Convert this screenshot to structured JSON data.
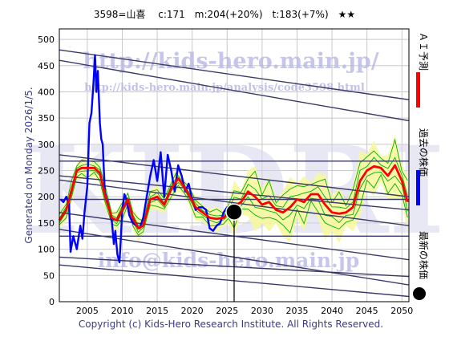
{
  "title": "3598=山喜　 c:171　m:204(+20%)　t:183(+7%)　★★",
  "side_label": "Generated on Monday 2026/1/5.",
  "copyright": "Copyright (c) Kids-Hero Research Institute. All Rights Reserved.",
  "watermarks": {
    "url_main": "http://kids-hero.main.jp/",
    "url_analysis": "http://kids-hero.main.jp/analysis/code3598.html",
    "email": "info@kids-hero.main.jp",
    "big": "KIDRI"
  },
  "legend": {
    "ai": "ＡＩ予測",
    "past": "過去の株価",
    "latest": "最新の株価"
  },
  "colors": {
    "background": "#ffffff",
    "grid": "#c8c8c8",
    "trend_lines": "#3a3a66",
    "band_fill": "#f7f7a0",
    "band_stroke": "#00b000",
    "ai_line": "#ff0000",
    "past_line": "#0000ff",
    "latest_marker": "#000000",
    "side_text": "#3a3a8c",
    "watermark": "#b8b8e6"
  },
  "chart_data": {
    "type": "line",
    "xlim": [
      2001,
      2051
    ],
    "ylim": [
      0,
      520
    ],
    "x_ticks": [
      2005,
      2010,
      2015,
      2020,
      2025,
      2030,
      2035,
      2040,
      2045,
      2050
    ],
    "y_ticks": [
      0,
      50,
      100,
      150,
      200,
      250,
      300,
      350,
      400,
      450,
      500
    ],
    "grid": true,
    "legend_position": "right",
    "latest": {
      "x": 2026.0,
      "y": 171
    },
    "series": [
      {
        "name": "過去の株価",
        "kind": "price",
        "points": [
          [
            2001.2,
            195
          ],
          [
            2001.6,
            190
          ],
          [
            2002.0,
            200
          ],
          [
            2002.4,
            185
          ],
          [
            2002.6,
            95
          ],
          [
            2003.0,
            125
          ],
          [
            2003.5,
            100
          ],
          [
            2004.0,
            145
          ],
          [
            2004.3,
            120
          ],
          [
            2004.6,
            170
          ],
          [
            2005.0,
            220
          ],
          [
            2005.3,
            340
          ],
          [
            2005.6,
            360
          ],
          [
            2005.9,
            420
          ],
          [
            2006.1,
            470
          ],
          [
            2006.3,
            400
          ],
          [
            2006.5,
            440
          ],
          [
            2006.8,
            340
          ],
          [
            2007.0,
            310
          ],
          [
            2007.2,
            300
          ],
          [
            2007.5,
            210
          ],
          [
            2008.0,
            185
          ],
          [
            2008.5,
            155
          ],
          [
            2008.8,
            110
          ],
          [
            2009.0,
            135
          ],
          [
            2009.3,
            90
          ],
          [
            2009.6,
            75
          ],
          [
            2009.8,
            120
          ],
          [
            2010.0,
            175
          ],
          [
            2010.3,
            205
          ],
          [
            2010.6,
            195
          ],
          [
            2011.0,
            165
          ],
          [
            2011.5,
            150
          ],
          [
            2012.0,
            145
          ],
          [
            2012.5,
            140
          ],
          [
            2013.0,
            160
          ],
          [
            2013.5,
            200
          ],
          [
            2014.0,
            240
          ],
          [
            2014.5,
            270
          ],
          [
            2015.0,
            230
          ],
          [
            2015.5,
            285
          ],
          [
            2016.0,
            200
          ],
          [
            2016.5,
            280
          ],
          [
            2017.0,
            250
          ],
          [
            2017.5,
            210
          ],
          [
            2018.0,
            260
          ],
          [
            2018.5,
            240
          ],
          [
            2019.0,
            210
          ],
          [
            2019.5,
            225
          ],
          [
            2020.0,
            195
          ],
          [
            2020.5,
            175
          ],
          [
            2021.0,
            180
          ],
          [
            2021.5,
            180
          ],
          [
            2022.0,
            175
          ],
          [
            2022.5,
            140
          ],
          [
            2023.0,
            135
          ],
          [
            2023.5,
            145
          ],
          [
            2024.0,
            150
          ],
          [
            2024.5,
            170
          ],
          [
            2025.0,
            180
          ],
          [
            2025.5,
            178
          ],
          [
            2026.0,
            171
          ]
        ]
      },
      {
        "name": "ＡＩ予測",
        "kind": "ai",
        "points": [
          [
            2001.0,
            155
          ],
          [
            2002.0,
            175
          ],
          [
            2002.8,
            215
          ],
          [
            2003.5,
            250
          ],
          [
            2004.2,
            255
          ],
          [
            2005.0,
            255
          ],
          [
            2006.0,
            255
          ],
          [
            2006.8,
            245
          ],
          [
            2007.5,
            205
          ],
          [
            2008.5,
            160
          ],
          [
            2009.2,
            155
          ],
          [
            2010.0,
            175
          ],
          [
            2010.8,
            195
          ],
          [
            2011.5,
            160
          ],
          [
            2012.3,
            140
          ],
          [
            2013.0,
            145
          ],
          [
            2014.0,
            195
          ],
          [
            2015.0,
            200
          ],
          [
            2016.0,
            185
          ],
          [
            2017.0,
            215
          ],
          [
            2018.0,
            235
          ],
          [
            2018.8,
            220
          ],
          [
            2019.5,
            205
          ],
          [
            2020.5,
            180
          ],
          [
            2021.5,
            170
          ],
          [
            2022.5,
            160
          ],
          [
            2023.5,
            158
          ],
          [
            2024.5,
            160
          ],
          [
            2025.2,
            170
          ],
          [
            2026.0,
            182
          ],
          [
            2027.0,
            190
          ],
          [
            2028.0,
            210
          ],
          [
            2029.0,
            200
          ],
          [
            2030.0,
            185
          ],
          [
            2031.0,
            190
          ],
          [
            2032.0,
            175
          ],
          [
            2033.0,
            170
          ],
          [
            2034.0,
            180
          ],
          [
            2035.0,
            195
          ],
          [
            2036.0,
            190
          ],
          [
            2037.0,
            205
          ],
          [
            2038.0,
            205
          ],
          [
            2039.0,
            185
          ],
          [
            2040.0,
            170
          ],
          [
            2041.0,
            168
          ],
          [
            2042.0,
            170
          ],
          [
            2043.0,
            180
          ],
          [
            2044.0,
            230
          ],
          [
            2045.0,
            250
          ],
          [
            2046.0,
            258
          ],
          [
            2047.0,
            255
          ],
          [
            2048.0,
            240
          ],
          [
            2049.0,
            260
          ],
          [
            2050.0,
            230
          ],
          [
            2050.8,
            190
          ]
        ]
      }
    ],
    "trend_lines": [
      [
        [
          2001,
          480
        ],
        [
          2051,
          385
        ]
      ],
      [
        [
          2001,
          460
        ],
        [
          2051,
          345
        ]
      ],
      [
        [
          2001,
          268
        ],
        [
          2051,
          268
        ]
      ],
      [
        [
          2001,
          280
        ],
        [
          2051,
          200
        ]
      ],
      [
        [
          2001,
          240
        ],
        [
          2051,
          175
        ]
      ],
      [
        [
          2001,
          232
        ],
        [
          2051,
          145
        ]
      ],
      [
        [
          2001,
          195
        ],
        [
          2051,
          195
        ]
      ],
      [
        [
          2001,
          125
        ],
        [
          2051,
          125
        ]
      ],
      [
        [
          2001,
          170
        ],
        [
          2051,
          80
        ]
      ],
      [
        [
          2001,
          138
        ],
        [
          2051,
          32
        ]
      ],
      [
        [
          2001,
          85
        ],
        [
          2051,
          48
        ]
      ],
      [
        [
          2001,
          70
        ],
        [
          2051,
          10
        ]
      ]
    ]
  }
}
